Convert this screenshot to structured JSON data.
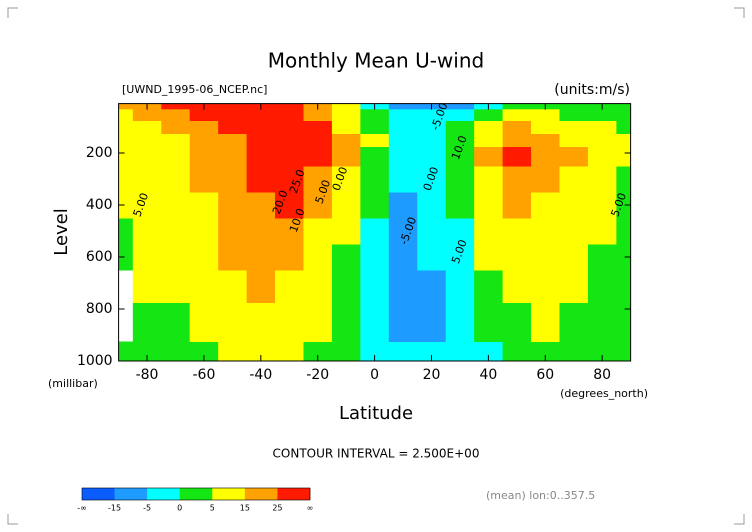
{
  "chart_data": {
    "type": "contour",
    "title": "Monthly Mean U-wind",
    "subtitle": "[UWND_1995-06_NCEP.nc]",
    "units": "(units:m/s)",
    "y_label": "Level",
    "y_unit": "(millibar)",
    "x_label": "Latitude",
    "x_unit": "(degrees_north)",
    "note": "CONTOUR INTERVAL = 2.500E+00",
    "footer": "(mean) lon:0..357.5",
    "xlim": [
      -90,
      90
    ],
    "ylim": [
      1000,
      10
    ],
    "xticks": [
      -80,
      -60,
      -40,
      -20,
      0,
      20,
      40,
      60,
      80
    ],
    "yticks": [
      200,
      400,
      600,
      800,
      1000
    ],
    "x": [
      -90,
      -80,
      -70,
      -60,
      -50,
      -40,
      -30,
      -20,
      -10,
      0,
      10,
      20,
      30,
      40,
      50,
      60,
      70,
      80,
      90
    ],
    "y": [
      1000,
      850,
      700,
      600,
      500,
      400,
      300,
      200,
      150,
      100,
      50,
      10
    ],
    "z": [
      [
        2,
        3,
        1,
        4,
        7,
        8,
        7,
        4,
        1,
        -3,
        -5,
        -4,
        -3,
        -1,
        2,
        3,
        2,
        1,
        0
      ],
      [
        null,
        4,
        3,
        6,
        10,
        12,
        10,
        6,
        2,
        -4,
        -7,
        -6,
        -4,
        0,
        4,
        5,
        4,
        2,
        1
      ],
      [
        null,
        5,
        5,
        8,
        13,
        15,
        13,
        8,
        3,
        -3,
        -7,
        -6,
        -3,
        3,
        7,
        7,
        5,
        3,
        2
      ],
      [
        4,
        6,
        7,
        10,
        15,
        18,
        16,
        10,
        4,
        -2,
        -6,
        -5,
        -2,
        5,
        9,
        9,
        7,
        4,
        2
      ],
      [
        4,
        6,
        8,
        12,
        17,
        21,
        20,
        14,
        6,
        -1,
        -6,
        -5,
        -1,
        7,
        12,
        11,
        9,
        6,
        3
      ],
      [
        5,
        6,
        9,
        14,
        19,
        24,
        25,
        18,
        8,
        0,
        -6,
        -5,
        0,
        9,
        16,
        14,
        12,
        8,
        4
      ],
      [
        5,
        6,
        10,
        15,
        21,
        27,
        30,
        24,
        12,
        1,
        -5,
        -4,
        1,
        12,
        22,
        18,
        14,
        10,
        4
      ],
      [
        5,
        6,
        11,
        16,
        22,
        28,
        34,
        33,
        18,
        3,
        -4,
        -3,
        3,
        15,
        30,
        20,
        16,
        12,
        5
      ],
      [
        6,
        7,
        12,
        17,
        23,
        29,
        33,
        34,
        20,
        5,
        -3,
        -2,
        4,
        14,
        24,
        18,
        14,
        11,
        5
      ],
      [
        8,
        10,
        15,
        20,
        26,
        30,
        30,
        26,
        14,
        3,
        -2,
        -1,
        2,
        10,
        16,
        12,
        10,
        8,
        4
      ],
      [
        12,
        16,
        22,
        28,
        33,
        34,
        30,
        20,
        8,
        0,
        -4,
        -5,
        -3,
        3,
        6,
        5,
        4,
        4,
        3
      ],
      [
        15,
        20,
        28,
        35,
        40,
        40,
        32,
        18,
        5,
        -2,
        -6,
        -8,
        -6,
        -2,
        1,
        2,
        2,
        2,
        2
      ]
    ],
    "contour_labels": [
      {
        "text": "5.00",
        "x": -82,
        "y": 400
      },
      {
        "text": "20.0",
        "x": -33,
        "y": 390
      },
      {
        "text": "25.0",
        "x": -27,
        "y": 310
      },
      {
        "text": "10.0",
        "x": -27,
        "y": 460
      },
      {
        "text": "5.00",
        "x": -18,
        "y": 350
      },
      {
        "text": "0.00",
        "x": -12,
        "y": 300
      },
      {
        "text": "-5.00",
        "x": 23,
        "y": 60
      },
      {
        "text": "0.00",
        "x": 20,
        "y": 300
      },
      {
        "text": "-5.00",
        "x": 12,
        "y": 500
      },
      {
        "text": "10.0",
        "x": 30,
        "y": 180
      },
      {
        "text": "5.00",
        "x": 30,
        "y": 580
      },
      {
        "text": "5.00",
        "x": 86,
        "y": 400
      }
    ],
    "colorbar": {
      "ticks": [
        "-∞",
        -15,
        -5,
        0,
        5,
        15,
        25,
        "∞"
      ],
      "colors": [
        "#0a5cff",
        "#1e9bff",
        "#00ffff",
        "#14e614",
        "#ffff00",
        "#ffa200",
        "#ff1a00"
      ]
    }
  }
}
